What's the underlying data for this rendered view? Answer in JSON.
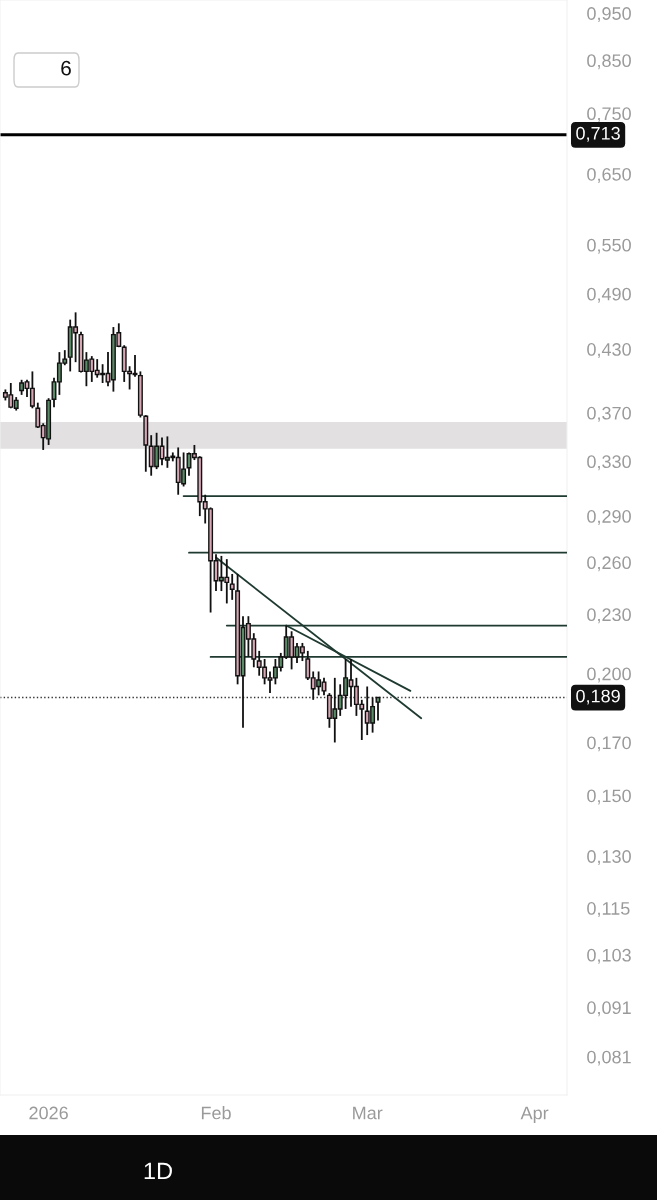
{
  "chart_data": {
    "type": "candlestick",
    "x": [
      "2025-12-24",
      "2025-12-25",
      "2025-12-26",
      "2025-12-27",
      "2025-12-28",
      "2025-12-29",
      "2025-12-30",
      "2025-12-31",
      "2026-01-01",
      "2026-01-02",
      "2026-01-03",
      "2026-01-04",
      "2026-01-05",
      "2026-01-06",
      "2026-01-07",
      "2026-01-08",
      "2026-01-09",
      "2026-01-10",
      "2026-01-11",
      "2026-01-12",
      "2026-01-13",
      "2026-01-14",
      "2026-01-15",
      "2026-01-16",
      "2026-01-17",
      "2026-01-18",
      "2026-01-19",
      "2026-01-20",
      "2026-01-21",
      "2026-01-22",
      "2026-01-23",
      "2026-01-24",
      "2026-01-25",
      "2026-01-26",
      "2026-01-27",
      "2026-01-28",
      "2026-01-29",
      "2026-01-30",
      "2026-01-31",
      "2026-02-01",
      "2026-02-02",
      "2026-02-03",
      "2026-02-04",
      "2026-02-05",
      "2026-02-06",
      "2026-02-07",
      "2026-02-08",
      "2026-02-09",
      "2026-02-10",
      "2026-02-11",
      "2026-02-12",
      "2026-02-13",
      "2026-02-14",
      "2026-02-15",
      "2026-02-16",
      "2026-02-17",
      "2026-02-18",
      "2026-02-19",
      "2026-02-20",
      "2026-02-21",
      "2026-02-22",
      "2026-02-23",
      "2026-02-24",
      "2026-02-25",
      "2026-02-26",
      "2026-02-27",
      "2026-02-28",
      "2026-03-01",
      "2026-03-02",
      "2026-03-03"
    ],
    "ohlc": [
      [
        0.388,
        0.391,
        0.381,
        0.384
      ],
      [
        0.386,
        0.397,
        0.374,
        0.375
      ],
      [
        0.374,
        0.384,
        0.372,
        0.381
      ],
      [
        0.39,
        0.4,
        0.386,
        0.397
      ],
      [
        0.398,
        0.4,
        0.384,
        0.392
      ],
      [
        0.392,
        0.408,
        0.374,
        0.376
      ],
      [
        0.374,
        0.379,
        0.357,
        0.358
      ],
      [
        0.359,
        0.361,
        0.339,
        0.349
      ],
      [
        0.348,
        0.383,
        0.343,
        0.381
      ],
      [
        0.382,
        0.402,
        0.375,
        0.398
      ],
      [
        0.398,
        0.427,
        0.386,
        0.416
      ],
      [
        0.416,
        0.429,
        0.414,
        0.42
      ],
      [
        0.422,
        0.461,
        0.408,
        0.453
      ],
      [
        0.453,
        0.469,
        0.417,
        0.447
      ],
      [
        0.445,
        0.448,
        0.407,
        0.408
      ],
      [
        0.408,
        0.427,
        0.394,
        0.419
      ],
      [
        0.42,
        0.423,
        0.398,
        0.408
      ],
      [
        0.409,
        0.42,
        0.402,
        0.405
      ],
      [
        0.406,
        0.415,
        0.397,
        0.405
      ],
      [
        0.406,
        0.427,
        0.394,
        0.398
      ],
      [
        0.4,
        0.453,
        0.389,
        0.445
      ],
      [
        0.447,
        0.457,
        0.432,
        0.433
      ],
      [
        0.432,
        0.434,
        0.398,
        0.408
      ],
      [
        0.408,
        0.413,
        0.391,
        0.406
      ],
      [
        0.406,
        0.424,
        0.403,
        0.405
      ],
      [
        0.404,
        0.408,
        0.366,
        0.368
      ],
      [
        0.367,
        0.368,
        0.322,
        0.343
      ],
      [
        0.342,
        0.351,
        0.319,
        0.326
      ],
      [
        0.326,
        0.353,
        0.324,
        0.342
      ],
      [
        0.342,
        0.349,
        0.327,
        0.332
      ],
      [
        0.331,
        0.35,
        0.325,
        0.333
      ],
      [
        0.333,
        0.337,
        0.33,
        0.334
      ],
      [
        0.333,
        0.341,
        0.305,
        0.314
      ],
      [
        0.313,
        0.337,
        0.311,
        0.324
      ],
      [
        0.325,
        0.337,
        0.319,
        0.336
      ],
      [
        0.336,
        0.343,
        0.331,
        0.333
      ],
      [
        0.333,
        0.334,
        0.29,
        0.3
      ],
      [
        0.3,
        0.305,
        0.285,
        0.295
      ],
      [
        0.295,
        0.296,
        0.231,
        0.261
      ],
      [
        0.261,
        0.265,
        0.243,
        0.249
      ],
      [
        0.249,
        0.264,
        0.243,
        0.251
      ],
      [
        0.251,
        0.262,
        0.236,
        0.248
      ],
      [
        0.247,
        0.253,
        0.238,
        0.244
      ],
      [
        0.243,
        0.253,
        0.195,
        0.199
      ],
      [
        0.199,
        0.229,
        0.176,
        0.223
      ],
      [
        0.225,
        0.229,
        0.208,
        0.217
      ],
      [
        0.217,
        0.22,
        0.203,
        0.207
      ],
      [
        0.206,
        0.211,
        0.199,
        0.203
      ],
      [
        0.203,
        0.207,
        0.195,
        0.198
      ],
      [
        0.198,
        0.201,
        0.191,
        0.197
      ],
      [
        0.198,
        0.207,
        0.195,
        0.203
      ],
      [
        0.203,
        0.21,
        0.201,
        0.208
      ],
      [
        0.208,
        0.224,
        0.207,
        0.218
      ],
      [
        0.218,
        0.221,
        0.202,
        0.208
      ],
      [
        0.208,
        0.215,
        0.205,
        0.213
      ],
      [
        0.213,
        0.215,
        0.206,
        0.21
      ],
      [
        0.207,
        0.211,
        0.197,
        0.198
      ],
      [
        0.198,
        0.201,
        0.188,
        0.193
      ],
      [
        0.194,
        0.201,
        0.19,
        0.197
      ],
      [
        0.196,
        0.198,
        0.19,
        0.192
      ],
      [
        0.19,
        0.191,
        0.176,
        0.18
      ],
      [
        0.18,
        0.198,
        0.17,
        0.184
      ],
      [
        0.184,
        0.195,
        0.181,
        0.19
      ],
      [
        0.19,
        0.207,
        0.184,
        0.198
      ],
      [
        0.197,
        0.207,
        0.185,
        0.194
      ],
      [
        0.194,
        0.198,
        0.181,
        0.186
      ],
      [
        0.186,
        0.188,
        0.171,
        0.184
      ],
      [
        0.183,
        0.194,
        0.173,
        0.178
      ],
      [
        0.178,
        0.189,
        0.174,
        0.185
      ],
      [
        0.187,
        0.189,
        0.179,
        0.189
      ]
    ],
    "series": [
      {
        "type": "line",
        "color": "#1f3a30",
        "x": [
          "2026-01-26",
          "2026-04-07"
        ],
        "values": [
          0.304,
          0.304
        ]
      },
      {
        "type": "line",
        "color": "#1f3a30",
        "x": [
          "2026-01-27",
          "2026-04-07"
        ],
        "values": [
          0.266,
          0.266
        ]
      },
      {
        "type": "line",
        "color": "#1f3a30",
        "x": [
          "2026-02-03",
          "2026-04-07"
        ],
        "values": [
          0.224,
          0.224
        ]
      },
      {
        "type": "line",
        "color": "#1f3a30",
        "x": [
          "2026-01-31",
          "2026-04-07"
        ],
        "values": [
          0.208,
          0.208
        ]
      },
      {
        "type": "line",
        "color": "#1f3a30",
        "x": [
          "2026-02-01",
          "2026-03-11"
        ],
        "values": [
          0.263,
          0.18
        ]
      },
      {
        "type": "line",
        "color": "#1f3a30",
        "x": [
          "2026-02-14",
          "2026-03-09"
        ],
        "values": [
          0.224,
          0.192
        ]
      }
    ],
    "ref_lines": [
      {
        "axis": "y",
        "value": 0.713,
        "label": "0,713",
        "color": "#000000",
        "line_style": "solid"
      },
      {
        "axis": "y",
        "value": 0.189,
        "label": "0,189",
        "color": "#333333",
        "line_style": "dotted"
      }
    ],
    "bands": [
      {
        "axis": "y",
        "from": 0.34,
        "to": 0.362,
        "color": "#e2e0e0"
      }
    ],
    "log": true,
    "grid": false,
    "xlim": [
      "2025-12-23",
      "2026-04-07"
    ],
    "xticks": [
      {
        "value": "2026-01-01",
        "label": "2026"
      },
      {
        "value": "2026-02-01",
        "label": "Feb"
      },
      {
        "value": "2026-03-01",
        "label": "Mar"
      },
      {
        "value": "2026-04-01",
        "label": "Apr"
      }
    ],
    "ylim": [
      0.074,
      0.98
    ],
    "yticks": [
      {
        "value": 0.95,
        "label": "0,950"
      },
      {
        "value": 0.85,
        "label": "0,850"
      },
      {
        "value": 0.75,
        "label": "0,750"
      },
      {
        "value": 0.65,
        "label": "0,650"
      },
      {
        "value": 0.55,
        "label": "0,550"
      },
      {
        "value": 0.49,
        "label": "0,490"
      },
      {
        "value": 0.43,
        "label": "0,430"
      },
      {
        "value": 0.37,
        "label": "0,370"
      },
      {
        "value": 0.33,
        "label": "0,330"
      },
      {
        "value": 0.29,
        "label": "0,290"
      },
      {
        "value": 0.26,
        "label": "0,260"
      },
      {
        "value": 0.23,
        "label": "0,230"
      },
      {
        "value": 0.2,
        "label": "0,200"
      },
      {
        "value": 0.17,
        "label": "0,170"
      },
      {
        "value": 0.15,
        "label": "0,150"
      },
      {
        "value": 0.13,
        "label": "0,130"
      },
      {
        "value": 0.115,
        "label": "0,115"
      },
      {
        "value": 0.103,
        "label": "0,103"
      },
      {
        "value": 0.091,
        "label": "0,091"
      },
      {
        "value": 0.081,
        "label": "0,081"
      }
    ],
    "annotations": [
      "6",
      "1D"
    ]
  }
}
